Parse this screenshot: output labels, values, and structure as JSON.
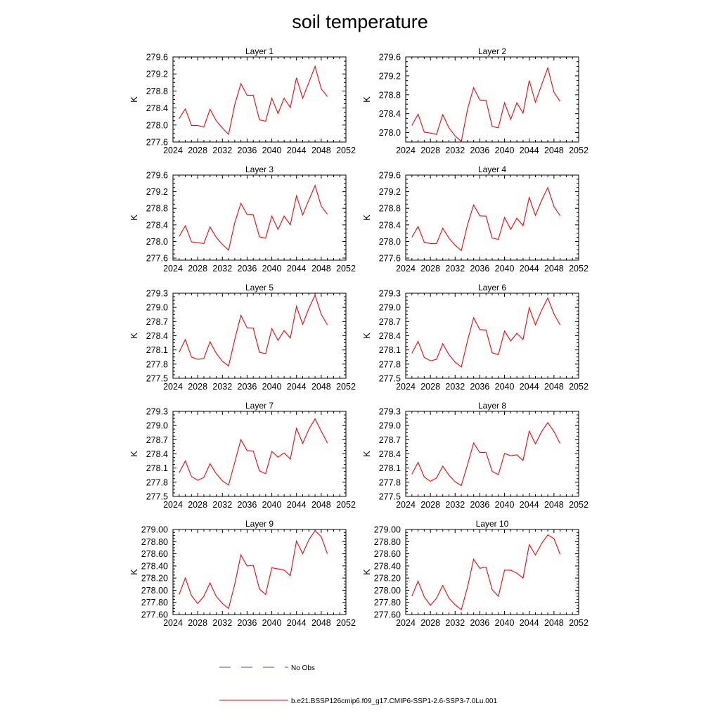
{
  "chart_data": {
    "title": "soil temperature",
    "type": "line",
    "panels": [
      {
        "title": "Layer 1",
        "ylabel": "K",
        "xticks": [
          2024,
          2028,
          2032,
          2036,
          2040,
          2044,
          2048,
          2052
        ],
        "xlim": [
          2024,
          2052
        ],
        "yticks": [
          "277.6",
          "278.0",
          "278.4",
          "278.8",
          "279.2",
          "279.6"
        ],
        "ylim": [
          277.6,
          279.6
        ],
        "x": [
          2025,
          2026,
          2027,
          2028,
          2029,
          2030,
          2031,
          2032,
          2033,
          2034,
          2035,
          2036,
          2037,
          2038,
          2039,
          2040,
          2041,
          2042,
          2043,
          2044,
          2045,
          2046,
          2047,
          2048,
          2049
        ],
        "y": [
          278.15,
          278.38,
          277.99,
          277.99,
          277.95,
          278.37,
          278.1,
          277.93,
          277.78,
          278.48,
          278.97,
          278.7,
          278.7,
          278.12,
          278.09,
          278.63,
          278.27,
          278.63,
          278.41,
          279.11,
          278.63,
          279.0,
          279.38,
          278.85,
          278.67
        ]
      },
      {
        "title": "Layer 2",
        "ylabel": "K",
        "xticks": [
          2024,
          2028,
          2032,
          2036,
          2040,
          2044,
          2048,
          2052
        ],
        "xlim": [
          2024,
          2052
        ],
        "yticks": [
          "278.0",
          "278.4",
          "278.8",
          "279.2",
          "279.6"
        ],
        "ylim": [
          277.8,
          279.6
        ],
        "x": [
          2025,
          2026,
          2027,
          2028,
          2029,
          2030,
          2031,
          2032,
          2033,
          2034,
          2035,
          2036,
          2037,
          2038,
          2039,
          2040,
          2041,
          2042,
          2043,
          2044,
          2045,
          2046,
          2047,
          2048,
          2049
        ],
        "y": [
          278.15,
          278.39,
          278.01,
          277.99,
          277.96,
          278.38,
          278.1,
          277.93,
          277.81,
          278.49,
          278.95,
          278.69,
          278.68,
          278.13,
          278.1,
          278.63,
          278.28,
          278.63,
          278.41,
          279.1,
          278.64,
          279.01,
          279.37,
          278.85,
          278.66
        ]
      },
      {
        "title": "Layer 3",
        "ylabel": "K",
        "xticks": [
          2024,
          2028,
          2032,
          2036,
          2040,
          2044,
          2048,
          2052
        ],
        "xlim": [
          2024,
          2052
        ],
        "yticks": [
          "277.6",
          "278.0",
          "278.4",
          "278.8",
          "279.2",
          "279.6"
        ],
        "ylim": [
          277.55,
          279.6
        ],
        "x": [
          2025,
          2026,
          2027,
          2028,
          2029,
          2030,
          2031,
          2032,
          2033,
          2034,
          2035,
          2036,
          2037,
          2038,
          2039,
          2040,
          2041,
          2042,
          2043,
          2044,
          2045,
          2046,
          2047,
          2048,
          2049
        ],
        "y": [
          278.12,
          278.38,
          277.99,
          277.97,
          277.95,
          278.35,
          278.1,
          277.93,
          277.79,
          278.45,
          278.92,
          278.65,
          278.64,
          278.11,
          278.08,
          278.61,
          278.29,
          278.61,
          278.4,
          279.1,
          278.64,
          279.0,
          279.35,
          278.85,
          278.66
        ]
      },
      {
        "title": "Layer 4",
        "ylabel": "K",
        "xticks": [
          2024,
          2028,
          2032,
          2036,
          2040,
          2044,
          2048,
          2052
        ],
        "xlim": [
          2024,
          2052
        ],
        "yticks": [
          "277.6",
          "278.0",
          "278.4",
          "278.8",
          "279.2",
          "279.6"
        ],
        "ylim": [
          277.55,
          279.6
        ],
        "x": [
          2025,
          2026,
          2027,
          2028,
          2029,
          2030,
          2031,
          2032,
          2033,
          2034,
          2035,
          2036,
          2037,
          2038,
          2039,
          2040,
          2041,
          2042,
          2043,
          2044,
          2045,
          2046,
          2047,
          2048,
          2049
        ],
        "y": [
          278.1,
          278.36,
          277.98,
          277.95,
          277.95,
          278.32,
          278.08,
          277.91,
          277.78,
          278.4,
          278.88,
          278.62,
          278.61,
          278.08,
          278.05,
          278.58,
          278.29,
          278.56,
          278.38,
          279.06,
          278.63,
          278.99,
          279.3,
          278.84,
          278.62
        ]
      },
      {
        "title": "Layer 5",
        "ylabel": "K",
        "xticks": [
          2024,
          2028,
          2032,
          2036,
          2040,
          2044,
          2048,
          2052
        ],
        "xlim": [
          2024,
          2052
        ],
        "yticks": [
          "277.5",
          "277.8",
          "278.1",
          "278.4",
          "278.7",
          "279.0",
          "279.3"
        ],
        "ylim": [
          277.5,
          279.3
        ],
        "x": [
          2025,
          2026,
          2027,
          2028,
          2029,
          2030,
          2031,
          2032,
          2033,
          2034,
          2035,
          2036,
          2037,
          2038,
          2039,
          2040,
          2041,
          2042,
          2043,
          2044,
          2045,
          2046,
          2047,
          2048,
          2049
        ],
        "y": [
          278.05,
          278.32,
          277.95,
          277.9,
          277.92,
          278.27,
          278.03,
          277.86,
          277.76,
          278.32,
          278.83,
          278.57,
          278.56,
          278.05,
          278.02,
          278.55,
          278.3,
          278.51,
          278.35,
          279.02,
          278.64,
          278.98,
          279.26,
          278.85,
          278.63
        ]
      },
      {
        "title": "Layer 6",
        "ylabel": "K",
        "xticks": [
          2024,
          2028,
          2032,
          2036,
          2040,
          2044,
          2048,
          2052
        ],
        "xlim": [
          2024,
          2052
        ],
        "yticks": [
          "277.5",
          "277.8",
          "278.1",
          "278.4",
          "278.7",
          "279.0",
          "279.3"
        ],
        "ylim": [
          277.5,
          279.3
        ],
        "x": [
          2025,
          2026,
          2027,
          2028,
          2029,
          2030,
          2031,
          2032,
          2033,
          2034,
          2035,
          2036,
          2037,
          2038,
          2039,
          2040,
          2041,
          2042,
          2043,
          2044,
          2045,
          2046,
          2047,
          2048,
          2049
        ],
        "y": [
          278.03,
          278.28,
          277.94,
          277.87,
          277.9,
          278.23,
          278.0,
          277.84,
          277.74,
          278.29,
          278.78,
          278.53,
          278.52,
          278.04,
          278.0,
          278.5,
          278.29,
          278.45,
          278.32,
          278.99,
          278.63,
          278.94,
          279.2,
          278.86,
          278.63
        ]
      },
      {
        "title": "Layer 7",
        "ylabel": "K",
        "xticks": [
          2024,
          2028,
          2032,
          2036,
          2040,
          2044,
          2048,
          2052
        ],
        "xlim": [
          2024,
          2052
        ],
        "yticks": [
          "277.5",
          "277.8",
          "278.1",
          "278.4",
          "278.7",
          "279.0",
          "279.3"
        ],
        "ylim": [
          277.5,
          279.3
        ],
        "x": [
          2025,
          2026,
          2027,
          2028,
          2029,
          2030,
          2031,
          2032,
          2033,
          2034,
          2035,
          2036,
          2037,
          2038,
          2039,
          2040,
          2041,
          2042,
          2043,
          2044,
          2045,
          2046,
          2047,
          2048,
          2049
        ],
        "y": [
          278.0,
          278.25,
          277.92,
          277.84,
          277.9,
          278.19,
          277.98,
          277.83,
          277.74,
          278.22,
          278.7,
          278.47,
          278.46,
          278.04,
          277.98,
          278.45,
          278.33,
          278.42,
          278.29,
          278.94,
          278.62,
          278.92,
          279.14,
          278.88,
          278.63
        ]
      },
      {
        "title": "Layer 8",
        "ylabel": "K",
        "xticks": [
          2024,
          2028,
          2032,
          2036,
          2040,
          2044,
          2048,
          2052
        ],
        "xlim": [
          2024,
          2052
        ],
        "yticks": [
          "277.5",
          "277.8",
          "278.1",
          "278.4",
          "278.7",
          "279.0",
          "279.3"
        ],
        "ylim": [
          277.5,
          279.3
        ],
        "x": [
          2025,
          2026,
          2027,
          2028,
          2029,
          2030,
          2031,
          2032,
          2033,
          2034,
          2035,
          2036,
          2037,
          2038,
          2039,
          2040,
          2041,
          2042,
          2043,
          2044,
          2045,
          2046,
          2047,
          2048,
          2049
        ],
        "y": [
          277.97,
          278.22,
          277.91,
          277.82,
          277.89,
          278.14,
          277.95,
          277.81,
          277.73,
          278.17,
          278.63,
          278.43,
          278.43,
          278.03,
          277.96,
          278.41,
          278.36,
          278.38,
          278.26,
          278.88,
          278.61,
          278.87,
          279.06,
          278.87,
          278.62
        ]
      },
      {
        "title": "Layer 9",
        "ylabel": "K",
        "xticks": [
          2024,
          2028,
          2032,
          2036,
          2040,
          2044,
          2048,
          2052
        ],
        "xlim": [
          2024,
          2052
        ],
        "yticks": [
          "277.60",
          "277.80",
          "278.00",
          "278.20",
          "278.40",
          "278.60",
          "278.80",
          "279.00"
        ],
        "ylim": [
          277.6,
          279.0
        ],
        "x": [
          2025,
          2026,
          2027,
          2028,
          2029,
          2030,
          2031,
          2032,
          2033,
          2034,
          2035,
          2036,
          2037,
          2038,
          2039,
          2040,
          2041,
          2042,
          2043,
          2044,
          2045,
          2046,
          2047,
          2048,
          2049
        ],
        "y": [
          277.93,
          278.2,
          277.91,
          277.78,
          277.9,
          278.12,
          277.9,
          277.78,
          277.7,
          278.1,
          278.58,
          278.4,
          278.41,
          278.02,
          277.93,
          278.37,
          278.35,
          278.33,
          278.24,
          278.81,
          278.6,
          278.83,
          278.98,
          278.88,
          278.6
        ]
      },
      {
        "title": "Layer 10",
        "ylabel": "K",
        "xticks": [
          2024,
          2028,
          2032,
          2036,
          2040,
          2044,
          2048,
          2052
        ],
        "xlim": [
          2024,
          2052
        ],
        "yticks": [
          "277.60",
          "277.80",
          "278.00",
          "278.20",
          "278.40",
          "278.60",
          "278.80",
          "279.00"
        ],
        "ylim": [
          277.6,
          279.0
        ],
        "x": [
          2025,
          2026,
          2027,
          2028,
          2029,
          2030,
          2031,
          2032,
          2033,
          2034,
          2035,
          2036,
          2037,
          2038,
          2039,
          2040,
          2041,
          2042,
          2043,
          2044,
          2045,
          2046,
          2047,
          2048,
          2049
        ],
        "y": [
          277.9,
          278.15,
          277.89,
          277.75,
          277.87,
          278.08,
          277.87,
          277.76,
          277.68,
          278.05,
          278.51,
          278.36,
          278.38,
          278.01,
          277.9,
          278.33,
          278.33,
          278.28,
          278.2,
          278.75,
          278.58,
          278.77,
          278.91,
          278.85,
          278.59
        ]
      }
    ],
    "legend": [
      {
        "label": "No Obs",
        "color": "#3d4ea8",
        "style": "dashed"
      },
      {
        "label": "b.e21.BSSP126cmip6.f09_g17.CMIP6-SSP1-2.6-SSP3-7.0Lu.001",
        "color": "#ff0000",
        "style": "solid"
      }
    ],
    "legend_placement": "bottom"
  }
}
